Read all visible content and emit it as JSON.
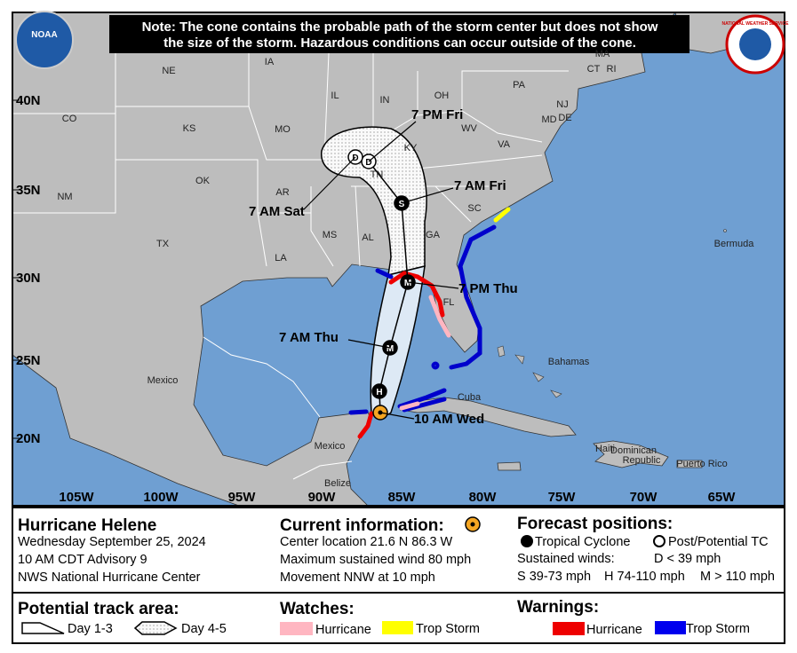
{
  "map": {
    "note": [
      "Note: The cone contains the probable path of the storm center but does not show",
      "the size of the storm. Hazardous conditions can occur outside of the cone."
    ],
    "logos": [
      "NOAA",
      "NATIONAL WEATHER SERVICE"
    ],
    "latitude_labels": [
      "40N",
      "35N",
      "30N",
      "25N",
      "20N"
    ],
    "longitude_labels": [
      "105W",
      "100W",
      "95W",
      "90W",
      "85W",
      "80W",
      "75W",
      "70W",
      "65W"
    ],
    "place_labels": [
      "NE",
      "IA",
      "IL",
      "IN",
      "OH",
      "PA",
      "MA",
      "CT",
      "RI",
      "NJ",
      "DE",
      "MD",
      "CO",
      "KS",
      "MO",
      "KY",
      "WV",
      "VA",
      "OK",
      "AR",
      "TN",
      "SC",
      "NM",
      "TX",
      "MS",
      "AL",
      "GA",
      "LA",
      "FL",
      "Bermuda",
      "Bahamas",
      "Cuba",
      "Mexico",
      "Mexico",
      "Belize",
      "Haiti",
      "Dominican",
      "Republic",
      "Puerto Rico"
    ],
    "forecast_times": [
      "7 PM Fri",
      "7 AM Sat",
      "7 AM Fri",
      "7 PM Thu",
      "7 AM Thu",
      "10 AM Wed"
    ],
    "forecast_points": [
      "D",
      "D",
      "S",
      "M",
      "M",
      "H"
    ]
  },
  "legend": {
    "storm": {
      "name": "Hurricane Helene",
      "date": "Wednesday September 25, 2024",
      "advisory": "10 AM CDT Advisory 9",
      "source": "NWS National Hurricane Center"
    },
    "current": {
      "title": "Current information:",
      "location": "Center location 21.6 N 86.3 W",
      "wind": "Maximum sustained wind 80 mph",
      "movement": "Movement NNW at 10 mph"
    },
    "forecast": {
      "title": "Forecast positions:",
      "tropical": "Tropical Cyclone",
      "post": "Post/Potential TC",
      "winds": "Sustained winds:",
      "d": "D < 39 mph",
      "s": "S 39-73 mph",
      "h": "H 74-110 mph",
      "m": "M > 110 mph"
    },
    "track": {
      "title": "Potential track area:",
      "day13": "Day 1-3",
      "day45": "Day 4-5"
    },
    "watches": {
      "title": "Watches:",
      "hurricane": "Hurricane",
      "storm": "Trop Storm"
    },
    "warnings": {
      "title": "Warnings:",
      "hurricane": "Hurricane",
      "storm": "Trop Storm"
    }
  }
}
